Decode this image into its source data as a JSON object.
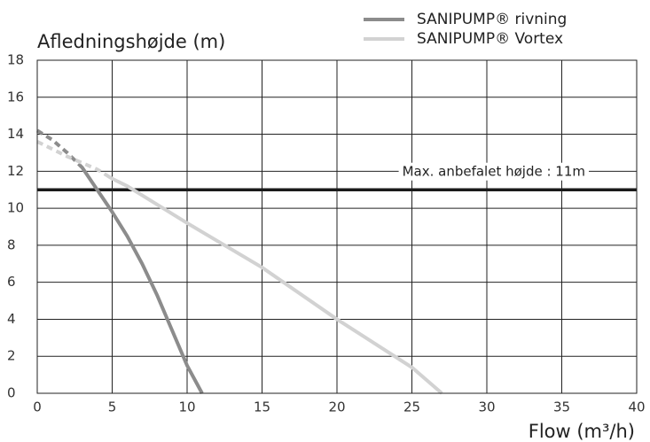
{
  "chart_data": {
    "type": "line",
    "title": "Afledningshøjde (m)",
    "x_label": "Flow (m³/h)",
    "xlim": [
      0,
      40
    ],
    "xticks": [
      0,
      5,
      10,
      15,
      20,
      25,
      30,
      35,
      40
    ],
    "ylim": [
      0,
      18
    ],
    "yticks": [
      0,
      2,
      4,
      6,
      8,
      10,
      12,
      14,
      16,
      18
    ],
    "grid": true,
    "series": [
      {
        "name": "SANIPUMP® rivning",
        "color": "#8c8c8c",
        "dashed_until_x": 3,
        "x": [
          0,
          1,
          2,
          3,
          4,
          5,
          6,
          7,
          8,
          9,
          10,
          11
        ],
        "values": [
          14.2,
          13.7,
          13.0,
          12.2,
          11.0,
          9.8,
          8.5,
          7.0,
          5.3,
          3.4,
          1.5,
          0
        ]
      },
      {
        "name": "SANIPUMP® Vortex",
        "color": "#d2d2d2",
        "dashed_until_x": 5,
        "x": [
          0,
          2,
          4,
          5,
          6,
          8,
          10,
          15,
          20,
          25,
          27
        ],
        "values": [
          13.6,
          12.8,
          12.1,
          11.6,
          11.2,
          10.2,
          9.2,
          6.8,
          4.0,
          1.4,
          0
        ]
      }
    ],
    "reference_line": {
      "value": 11,
      "label": "Max. anbefalet højde : 11m",
      "color": "#1a1a1a"
    }
  }
}
